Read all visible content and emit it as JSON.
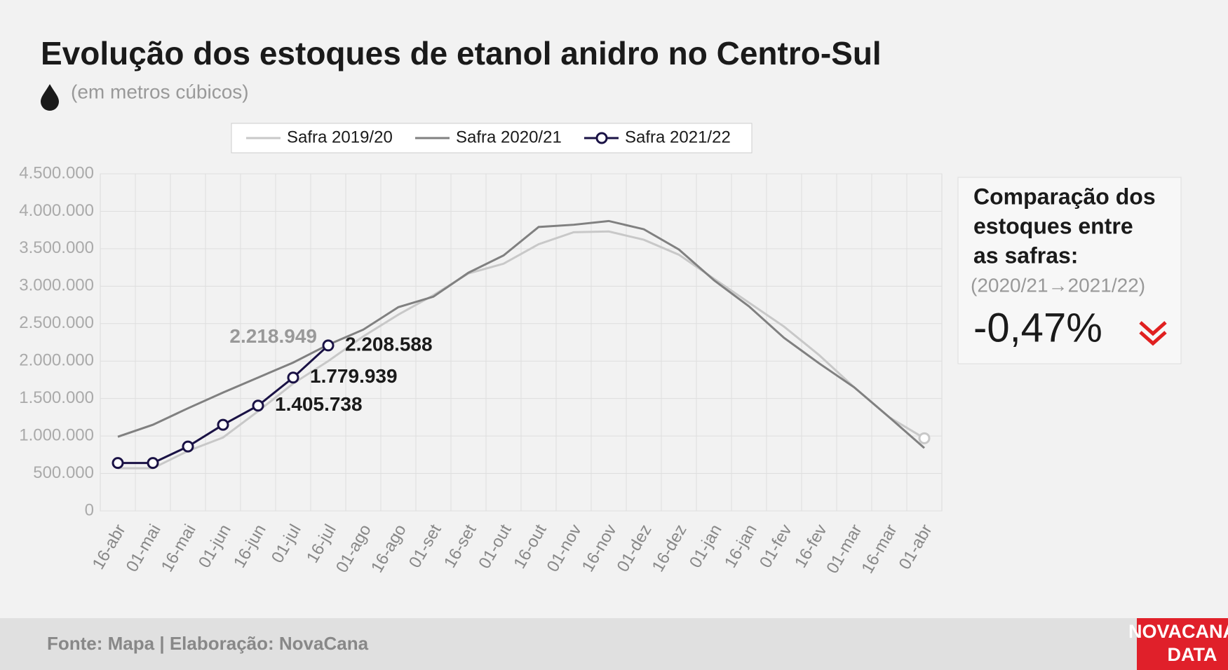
{
  "chart_data": {
    "type": "line",
    "title": "Evolução dos estoques de etanol anidro no Centro-Sul",
    "subtitle": "(em metros cúbicos)",
    "categories": [
      "16-abr",
      "01-mai",
      "16-mai",
      "01-jun",
      "16-jun",
      "01-jul",
      "16-jul",
      "01-ago",
      "16-ago",
      "01-set",
      "16-set",
      "01-out",
      "16-out",
      "01-nov",
      "16-nov",
      "01-dez",
      "16-dez",
      "01-jan",
      "16-jan",
      "01-fev",
      "16-fev",
      "01-mar",
      "16-mar",
      "01-abr"
    ],
    "series": [
      {
        "name": "Safra 2019/20",
        "color": "#c8c8c8",
        "end_marker": true,
        "values": [
          570000,
          570000,
          800000,
          980000,
          1330000,
          1700000,
          2000000,
          2330000,
          2620000,
          2880000,
          3170000,
          3300000,
          3560000,
          3720000,
          3730000,
          3620000,
          3420000,
          3100000,
          2780000,
          2460000,
          2080000,
          1650000,
          1250000,
          970000
        ]
      },
      {
        "name": "Safra 2020/21",
        "color": "#808080",
        "values": [
          990000,
          1150000,
          1370000,
          1580000,
          1780000,
          1980000,
          2218949,
          2420000,
          2720000,
          2860000,
          3180000,
          3410000,
          3790000,
          3820000,
          3870000,
          3760000,
          3490000,
          3080000,
          2730000,
          2310000,
          1970000,
          1650000,
          1250000,
          840000
        ],
        "value_labels": [
          null,
          null,
          null,
          null,
          null,
          null,
          "2.218.949",
          null,
          null,
          null,
          null,
          null,
          null,
          null,
          null,
          null,
          null,
          null,
          null,
          null,
          null,
          null,
          null,
          null
        ]
      },
      {
        "name": "Safra 2021/22",
        "color": "#1a1245",
        "markers": true,
        "values": [
          640000,
          640000,
          860000,
          1150000,
          1405738,
          1779939,
          2208588,
          null,
          null,
          null,
          null,
          null,
          null,
          null,
          null,
          null,
          null,
          null,
          null,
          null,
          null,
          null,
          null,
          null
        ],
        "value_labels": [
          null,
          null,
          null,
          null,
          "1.405.738",
          "1.779.939",
          "2.208.588",
          null,
          null,
          null,
          null,
          null,
          null,
          null,
          null,
          null,
          null,
          null,
          null,
          null,
          null,
          null,
          null,
          null
        ]
      }
    ],
    "ylim": [
      0,
      4500000
    ],
    "yticks": [
      0,
      {
        "value": 500000,
        "label": "500.000"
      },
      {
        "value": 1000000,
        "label": "1.000.000"
      },
      {
        "value": 1500000,
        "label": "1.500.000"
      },
      {
        "value": 2000000,
        "label": "2.000.000"
      },
      {
        "value": 2500000,
        "label": "2.500.000"
      },
      {
        "value": 3000000,
        "label": "3.000.000"
      },
      {
        "value": 3500000,
        "label": "3.500.000"
      },
      {
        "value": 4000000,
        "label": "4.000.000"
      },
      {
        "value": 4500000,
        "label": "4.500.000"
      }
    ],
    "grid": true
  },
  "comparison": {
    "title_lines": [
      "Comparação dos",
      "estoques entre",
      "as safras:"
    ],
    "period": "(2020/21→2021/22)",
    "value": "-0,47%"
  },
  "footer": {
    "source": "Fonte: Mapa | Elaboração: NovaCana",
    "logo": [
      "NOVACANA",
      "DATA"
    ]
  }
}
